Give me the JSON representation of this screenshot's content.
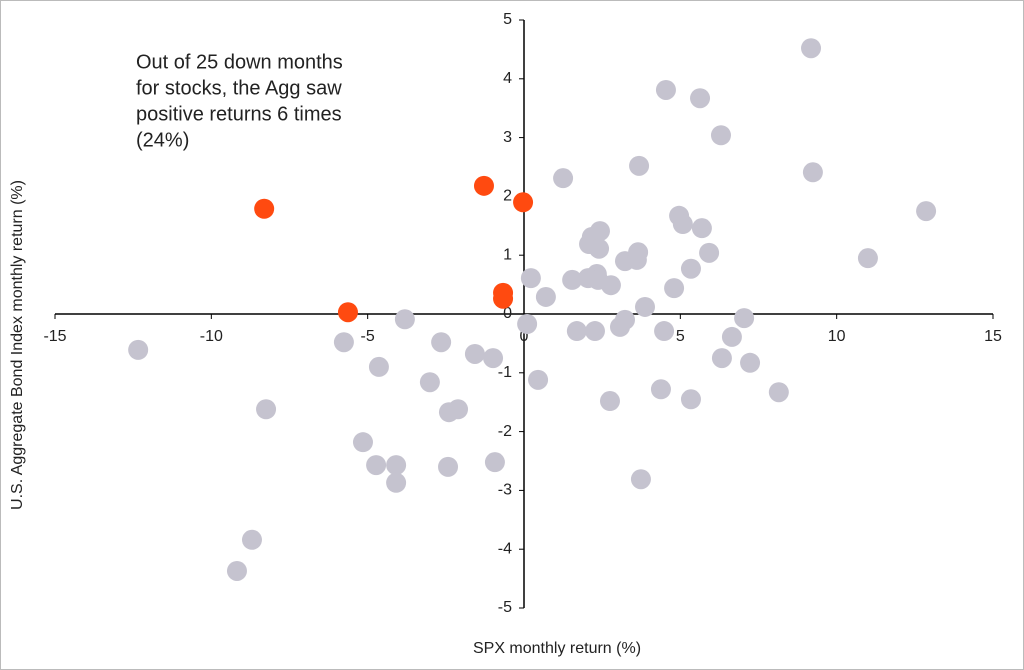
{
  "chart_data": {
    "type": "scatter",
    "xlabel": "SPX monthly return (%)",
    "ylabel": "U.S. Aggregate Bond Index monthly return (%)",
    "annotation": [
      "Out of 25 down months",
      "for stocks, the Agg saw",
      "positive returns 6 times",
      "(24%)"
    ],
    "xlim": [
      -15,
      15
    ],
    "ylim": [
      -5,
      5
    ],
    "xticks": [
      -15,
      -10,
      -5,
      0,
      5,
      10,
      15
    ],
    "yticks": [
      -5,
      -4,
      -3,
      -2,
      -1,
      0,
      1,
      2,
      3,
      4,
      5
    ],
    "series": [
      {
        "color": "#c5c3cf",
        "x": [
          -12.34,
          -5.76,
          -3.81,
          -4.64,
          -2.65,
          -1.57,
          -0.99,
          -3.01,
          -8.25,
          -2.4,
          -2.11,
          -5.15,
          -4.73,
          -4.09,
          -4.09,
          -2.43,
          -0.93,
          -8.7,
          -9.18,
          0.1,
          0.45,
          0.22,
          0.7,
          1.25,
          1.54,
          1.69,
          2.08,
          2.17,
          2.43,
          2.4,
          2.05,
          2.33,
          2.37,
          2.27,
          2.78,
          2.75,
          3.07,
          3.23,
          3.23,
          3.61,
          3.65,
          3.68,
          3.87,
          3.74,
          4.38,
          4.48,
          4.54,
          4.8,
          4.96,
          5.08,
          5.34,
          5.34,
          5.63,
          5.69,
          5.92,
          6.3,
          6.33,
          6.65,
          7.04,
          7.23,
          8.15,
          9.18,
          9.24,
          11.0,
          12.86
        ],
        "values": [
          -0.61,
          -0.48,
          -0.09,
          -0.9,
          -0.48,
          -0.68,
          -0.75,
          -1.16,
          -1.62,
          -1.67,
          -1.62,
          -2.18,
          -2.57,
          -2.57,
          -2.87,
          -2.6,
          -2.52,
          -3.84,
          -4.37,
          -0.17,
          -1.12,
          0.61,
          0.29,
          2.31,
          0.58,
          -0.29,
          1.19,
          1.31,
          1.41,
          1.11,
          0.61,
          0.68,
          0.58,
          -0.29,
          0.49,
          -1.48,
          -0.22,
          -0.1,
          0.9,
          0.92,
          1.05,
          2.52,
          0.12,
          -2.81,
          -1.28,
          -0.29,
          3.81,
          0.44,
          1.67,
          1.53,
          0.77,
          -1.45,
          3.67,
          1.46,
          1.04,
          3.04,
          -0.75,
          -0.39,
          -0.07,
          -0.83,
          -1.33,
          4.52,
          2.41,
          0.95,
          1.75
        ]
      },
      {
        "color": "#ff4a10",
        "x": [
          -8.31,
          -1.28,
          -0.03,
          -5.63,
          -0.67,
          -0.67
        ],
        "values": [
          1.79,
          2.18,
          1.9,
          0.03,
          0.36,
          0.26
        ]
      }
    ]
  }
}
